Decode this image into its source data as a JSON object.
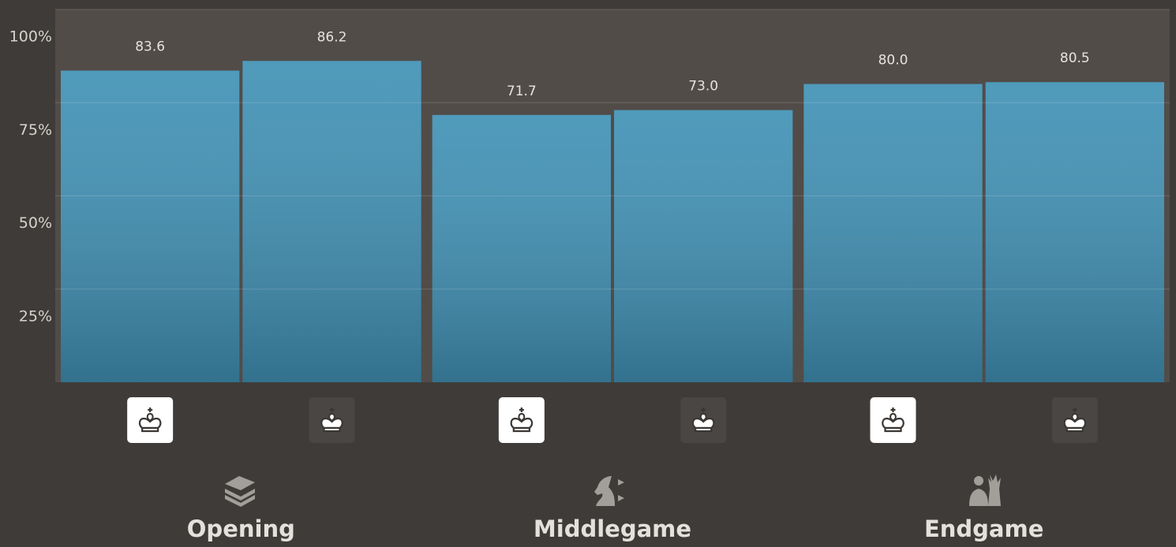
{
  "chart_data": {
    "type": "bar",
    "categories": [
      "Opening",
      "Middlegame",
      "Endgame"
    ],
    "series": [
      {
        "color": "#4191b5",
        "values": [
          83.6,
          71.7,
          80.0
        ],
        "value_labels": [
          "83.6",
          "71.7",
          "80.0"
        ]
      },
      {
        "color": "#4191b5",
        "values": [
          86.2,
          73.0,
          80.5
        ],
        "value_labels": [
          "86.2",
          "73.0",
          "80.5"
        ]
      }
    ],
    "ylim": [
      0,
      100
    ],
    "yticks": [
      {
        "value": 25,
        "label": "25%"
      },
      {
        "value": 50,
        "label": "50%"
      },
      {
        "value": 75,
        "label": "75%"
      },
      {
        "value": 100,
        "label": "100%"
      }
    ],
    "grid": true
  }
}
